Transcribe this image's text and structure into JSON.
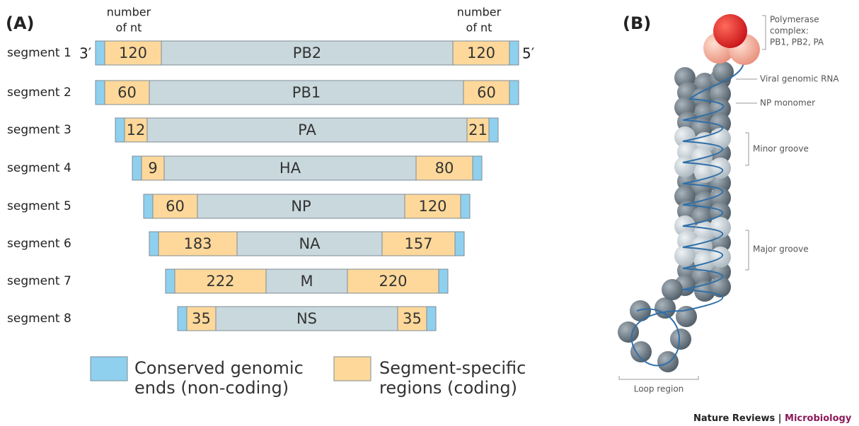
{
  "panel_a": {
    "label": "(A)",
    "header_left": [
      "number",
      "of nt"
    ],
    "header_right": [
      "number",
      "of nt"
    ],
    "end_3": "3′",
    "end_5": "5′",
    "segments": [
      {
        "label": "segment 1",
        "protein": "PB2",
        "left_nt": 120,
        "right_nt": 120
      },
      {
        "label": "segment 2",
        "protein": "PB1",
        "left_nt": 60,
        "right_nt": 60
      },
      {
        "label": "segment 3",
        "protein": "PA",
        "left_nt": 12,
        "right_nt": 21
      },
      {
        "label": "segment 4",
        "protein": "HA",
        "left_nt": 9,
        "right_nt": 80
      },
      {
        "label": "segment 5",
        "protein": "NP",
        "left_nt": 60,
        "right_nt": 120
      },
      {
        "label": "segment 6",
        "protein": "NA",
        "left_nt": 183,
        "right_nt": 157
      },
      {
        "label": "segment 7",
        "protein": "M",
        "left_nt": 222,
        "right_nt": 220
      },
      {
        "label": "segment 8",
        "protein": "NS",
        "left_nt": 35,
        "right_nt": 35
      }
    ],
    "legend": [
      {
        "lines": [
          "Conserved genomic",
          "ends (non-coding)"
        ]
      },
      {
        "lines": [
          "Segment-specific",
          "regions (coding)"
        ]
      }
    ]
  },
  "panel_b": {
    "label": "(B)",
    "polymerase": [
      "Polymerase",
      "complex:",
      "PB1, PB2, PA"
    ],
    "viral_rna": "Viral genomic RNA",
    "np_monomer": "NP monomer",
    "minor_groove": "Minor groove",
    "major_groove": "Major groove",
    "loop_region": "Loop region",
    "credit": {
      "journal": "Nature Reviews",
      "separator": "|",
      "section": "Microbiology"
    }
  }
}
